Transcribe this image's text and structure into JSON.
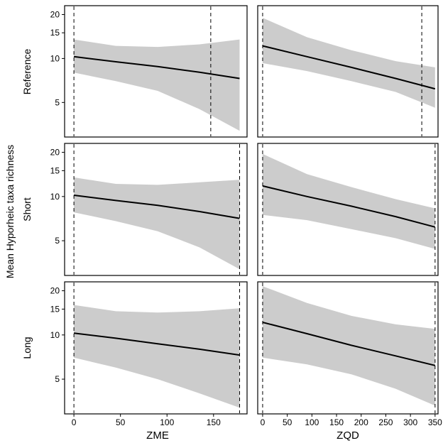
{
  "chart_data": {
    "type": "line",
    "title": "",
    "ylabel": "Mean Hyporheic taxa richness",
    "yscale": "log",
    "ylim": [
      2.9,
      23
    ],
    "yticks": [
      5,
      10,
      15,
      20
    ],
    "row_labels": [
      "Reference",
      "Short",
      "Long"
    ],
    "columns": [
      {
        "xlabel": "ZME",
        "xlim": [
          -10,
          186
        ],
        "xticks": [
          0,
          50,
          100,
          150
        ]
      },
      {
        "xlabel": "ZQD",
        "xlim": [
          -10,
          356
        ],
        "xticks": [
          0,
          50,
          100,
          150,
          200,
          250,
          300,
          350
        ]
      }
    ],
    "panels": [
      {
        "row": "Reference",
        "column": "ZME",
        "x": [
          0,
          45,
          90,
          135,
          178
        ],
        "fit": [
          10.3,
          9.5,
          8.8,
          8.05,
          7.3
        ],
        "lower": [
          8.0,
          7.0,
          6.0,
          4.5,
          3.2
        ],
        "upper": [
          13.5,
          12.2,
          12.0,
          12.5,
          13.5
        ],
        "vlines": [
          0,
          147
        ]
      },
      {
        "row": "Reference",
        "column": "ZQD",
        "x": [
          0,
          90,
          180,
          270,
          350
        ],
        "fit": [
          12.2,
          10.3,
          8.7,
          7.3,
          6.2
        ],
        "lower": [
          9.3,
          8.2,
          7.0,
          5.9,
          4.6
        ],
        "upper": [
          19.0,
          14.0,
          11.4,
          9.6,
          8.7
        ],
        "vlines": [
          0,
          323
        ]
      },
      {
        "row": "Short",
        "column": "ZME",
        "x": [
          0,
          45,
          90,
          135,
          178
        ],
        "fit": [
          10.2,
          9.4,
          8.7,
          7.9,
          7.1
        ],
        "lower": [
          7.8,
          6.8,
          5.8,
          4.5,
          3.2
        ],
        "upper": [
          13.5,
          12.2,
          12.0,
          12.5,
          13.0
        ],
        "vlines": [
          0,
          178
        ]
      },
      {
        "row": "Short",
        "column": "ZQD",
        "x": [
          0,
          90,
          180,
          270,
          350
        ],
        "fit": [
          11.8,
          10.0,
          8.6,
          7.3,
          6.2
        ],
        "lower": [
          7.5,
          6.9,
          6.0,
          5.2,
          4.4
        ],
        "upper": [
          19.5,
          14.2,
          11.6,
          9.6,
          8.3
        ],
        "vlines": [
          0,
          350
        ]
      },
      {
        "row": "Long",
        "column": "ZME",
        "x": [
          0,
          45,
          90,
          135,
          178
        ],
        "fit": [
          10.3,
          9.5,
          8.7,
          8.0,
          7.3
        ],
        "lower": [
          7.0,
          6.0,
          5.0,
          4.0,
          3.2
        ],
        "upper": [
          16.0,
          14.5,
          14.2,
          14.5,
          15.2
        ],
        "vlines": [
          0,
          178
        ]
      },
      {
        "row": "Long",
        "column": "ZQD",
        "x": [
          0,
          90,
          180,
          270,
          350
        ],
        "fit": [
          12.2,
          10.2,
          8.5,
          7.2,
          6.2
        ],
        "lower": [
          7.0,
          6.3,
          5.4,
          4.3,
          3.3
        ],
        "upper": [
          21.5,
          16.5,
          13.5,
          11.8,
          11.0
        ],
        "vlines": [
          0,
          350
        ]
      }
    ]
  }
}
